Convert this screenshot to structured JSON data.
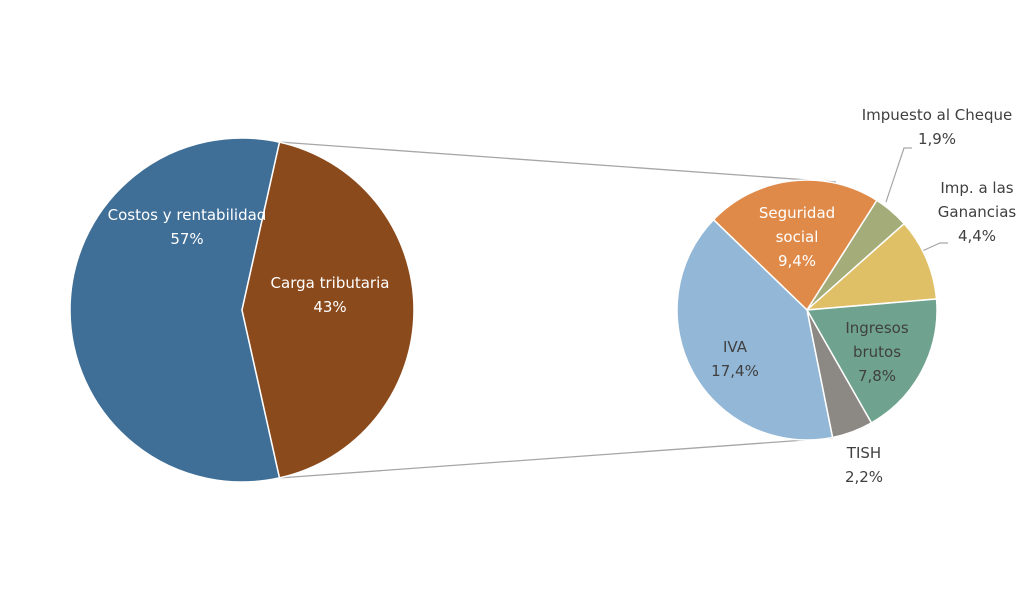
{
  "chart_data": [
    {
      "type": "pie",
      "categories": [
        "Costos y rentabilidad",
        "Carga tributaria"
      ],
      "values": [
        57,
        43
      ],
      "value_labels": [
        "57%",
        "43%"
      ],
      "colors": [
        "#3f6e96",
        "#8b4a1c"
      ]
    },
    {
      "type": "pie",
      "categories": [
        "Seguridad social",
        "Impuesto al Cheque",
        "Imp. a las Ganancias",
        "Ingresos brutos",
        "TISH",
        "IVA"
      ],
      "values": [
        9.4,
        1.9,
        4.4,
        7.8,
        2.2,
        17.4
      ],
      "value_labels": [
        "9,4%",
        "1,9%",
        "4,4%",
        "7,8%",
        "2,2%",
        "17,4%"
      ],
      "colors": [
        "#e08a4a",
        "#a4ad7a",
        "#e0c067",
        "#6fa38f",
        "#8c8884",
        "#93b7d7"
      ]
    }
  ]
}
